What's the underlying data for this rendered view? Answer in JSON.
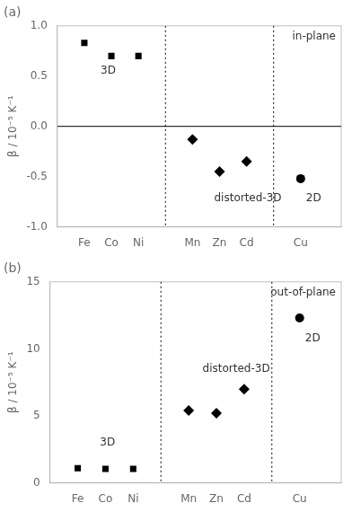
{
  "chart_data": [
    {
      "type": "scatter",
      "title": "(a)",
      "subtitle": "in-plane",
      "ylabel": "β / 10⁻⁵ K⁻¹",
      "xlim": [
        0,
        10.5
      ],
      "xticks": [
        {
          "value": 1,
          "label": "Fe"
        },
        {
          "value": 2,
          "label": "Co"
        },
        {
          "value": 3,
          "label": "Ni"
        },
        {
          "value": 5,
          "label": "Mn"
        },
        {
          "value": 6,
          "label": "Zn"
        },
        {
          "value": 7,
          "label": "Cd"
        },
        {
          "value": 9,
          "label": "Cu"
        }
      ],
      "ylim": [
        -1.0,
        1.0
      ],
      "yticks": [
        {
          "value": -1.0,
          "label": "-1.0"
        },
        {
          "value": -0.5,
          "label": "-0.5"
        },
        {
          "value": 0.0,
          "label": "0.0"
        },
        {
          "value": 0.5,
          "label": "0.5"
        },
        {
          "value": 1.0,
          "label": "1.0"
        }
      ],
      "grid": false,
      "series": [
        {
          "x": [
            1,
            2,
            3
          ],
          "values": [
            0.83,
            0.7,
            0.7
          ],
          "marker": "square",
          "color": "black"
        },
        {
          "x": [
            5,
            6,
            7
          ],
          "values": [
            -0.13,
            -0.45,
            -0.35
          ],
          "marker": "diamond",
          "color": "black"
        },
        {
          "x": [
            9
          ],
          "values": [
            -0.52
          ],
          "marker": "circle",
          "color": "black"
        }
      ],
      "vlines": [
        4.0,
        8.0
      ],
      "hlines": [
        0
      ],
      "annotations": [
        {
          "text": "3D",
          "x": 1.6,
          "y": 0.55
        },
        {
          "text": "distorted-3D",
          "x": 5.8,
          "y": -0.72
        },
        {
          "text": "2D",
          "x": 9.2,
          "y": -0.72
        }
      ]
    },
    {
      "type": "scatter",
      "title": "(b)",
      "subtitle": "out-of-plane",
      "ylabel": "β / 10⁻⁵ K⁻¹",
      "xlim": [
        0,
        10.5
      ],
      "xticks": [
        {
          "value": 1,
          "label": "Fe"
        },
        {
          "value": 2,
          "label": "Co"
        },
        {
          "value": 3,
          "label": "Ni"
        },
        {
          "value": 5,
          "label": "Mn"
        },
        {
          "value": 6,
          "label": "Zn"
        },
        {
          "value": 7,
          "label": "Cd"
        },
        {
          "value": 9,
          "label": "Cu"
        }
      ],
      "ylim": [
        0,
        15
      ],
      "yticks": [
        0,
        5,
        10,
        15
      ],
      "grid": false,
      "series": [
        {
          "x": [
            1,
            2,
            3
          ],
          "values": [
            1.1,
            1.05,
            1.05
          ],
          "marker": "square",
          "color": "black"
        },
        {
          "x": [
            5,
            6,
            7
          ],
          "values": [
            5.4,
            5.2,
            7.0
          ],
          "marker": "diamond",
          "color": "black"
        },
        {
          "x": [
            9
          ],
          "values": [
            12.3
          ],
          "marker": "circle",
          "color": "black"
        }
      ],
      "vlines": [
        4.0,
        8.0
      ],
      "annotations": [
        {
          "text": "3D",
          "x": 1.8,
          "y": 3.0
        },
        {
          "text": "distorted-3D",
          "x": 5.5,
          "y": 8.5
        },
        {
          "text": "2D",
          "x": 9.2,
          "y": 10.8
        }
      ]
    }
  ]
}
